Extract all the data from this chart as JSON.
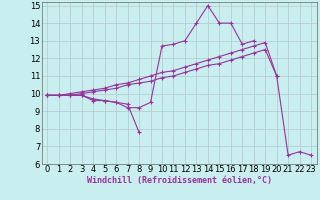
{
  "bg_color": "#c8eef0",
  "grid_color": "#b0c8c8",
  "line_color": "#993399",
  "marker": "+",
  "xlabel": "Windchill (Refroidissement éolien,°C)",
  "xlim": [
    -0.5,
    23.5
  ],
  "ylim": [
    6,
    15.2
  ],
  "xticks": [
    0,
    1,
    2,
    3,
    4,
    5,
    6,
    7,
    8,
    9,
    10,
    11,
    12,
    13,
    14,
    15,
    16,
    17,
    18,
    19,
    20,
    21,
    22,
    23
  ],
  "yticks": [
    6,
    7,
    8,
    9,
    10,
    11,
    12,
    13,
    14,
    15
  ],
  "series": [
    [
      9.9,
      9.9,
      9.9,
      9.9,
      9.6,
      9.6,
      9.5,
      9.2,
      9.2,
      9.5,
      12.7,
      12.8,
      13.0,
      14.0,
      15.0,
      14.0,
      14.0,
      12.8,
      13.0,
      null,
      null,
      null,
      null,
      null
    ],
    [
      9.9,
      9.9,
      9.9,
      9.9,
      9.7,
      9.6,
      9.5,
      9.4,
      7.8,
      null,
      null,
      null,
      null,
      null,
      null,
      null,
      null,
      null,
      null,
      null,
      null,
      null,
      null,
      null
    ],
    [
      9.9,
      9.9,
      9.9,
      10.0,
      10.1,
      10.2,
      10.3,
      10.5,
      10.6,
      10.7,
      10.9,
      11.0,
      11.2,
      11.4,
      11.6,
      11.7,
      11.9,
      12.1,
      12.3,
      12.5,
      11.0,
      null,
      null,
      null
    ],
    [
      9.9,
      9.9,
      10.0,
      10.1,
      10.2,
      10.3,
      10.5,
      10.6,
      10.8,
      11.0,
      11.2,
      11.3,
      11.5,
      11.7,
      11.9,
      12.1,
      12.3,
      12.5,
      12.7,
      12.9,
      11.0,
      6.5,
      6.7,
      6.5
    ]
  ],
  "xlabel_fontsize": 6,
  "tick_fontsize": 6,
  "linewidth": 0.8,
  "markersize": 2.5,
  "markeredgewidth": 0.8
}
